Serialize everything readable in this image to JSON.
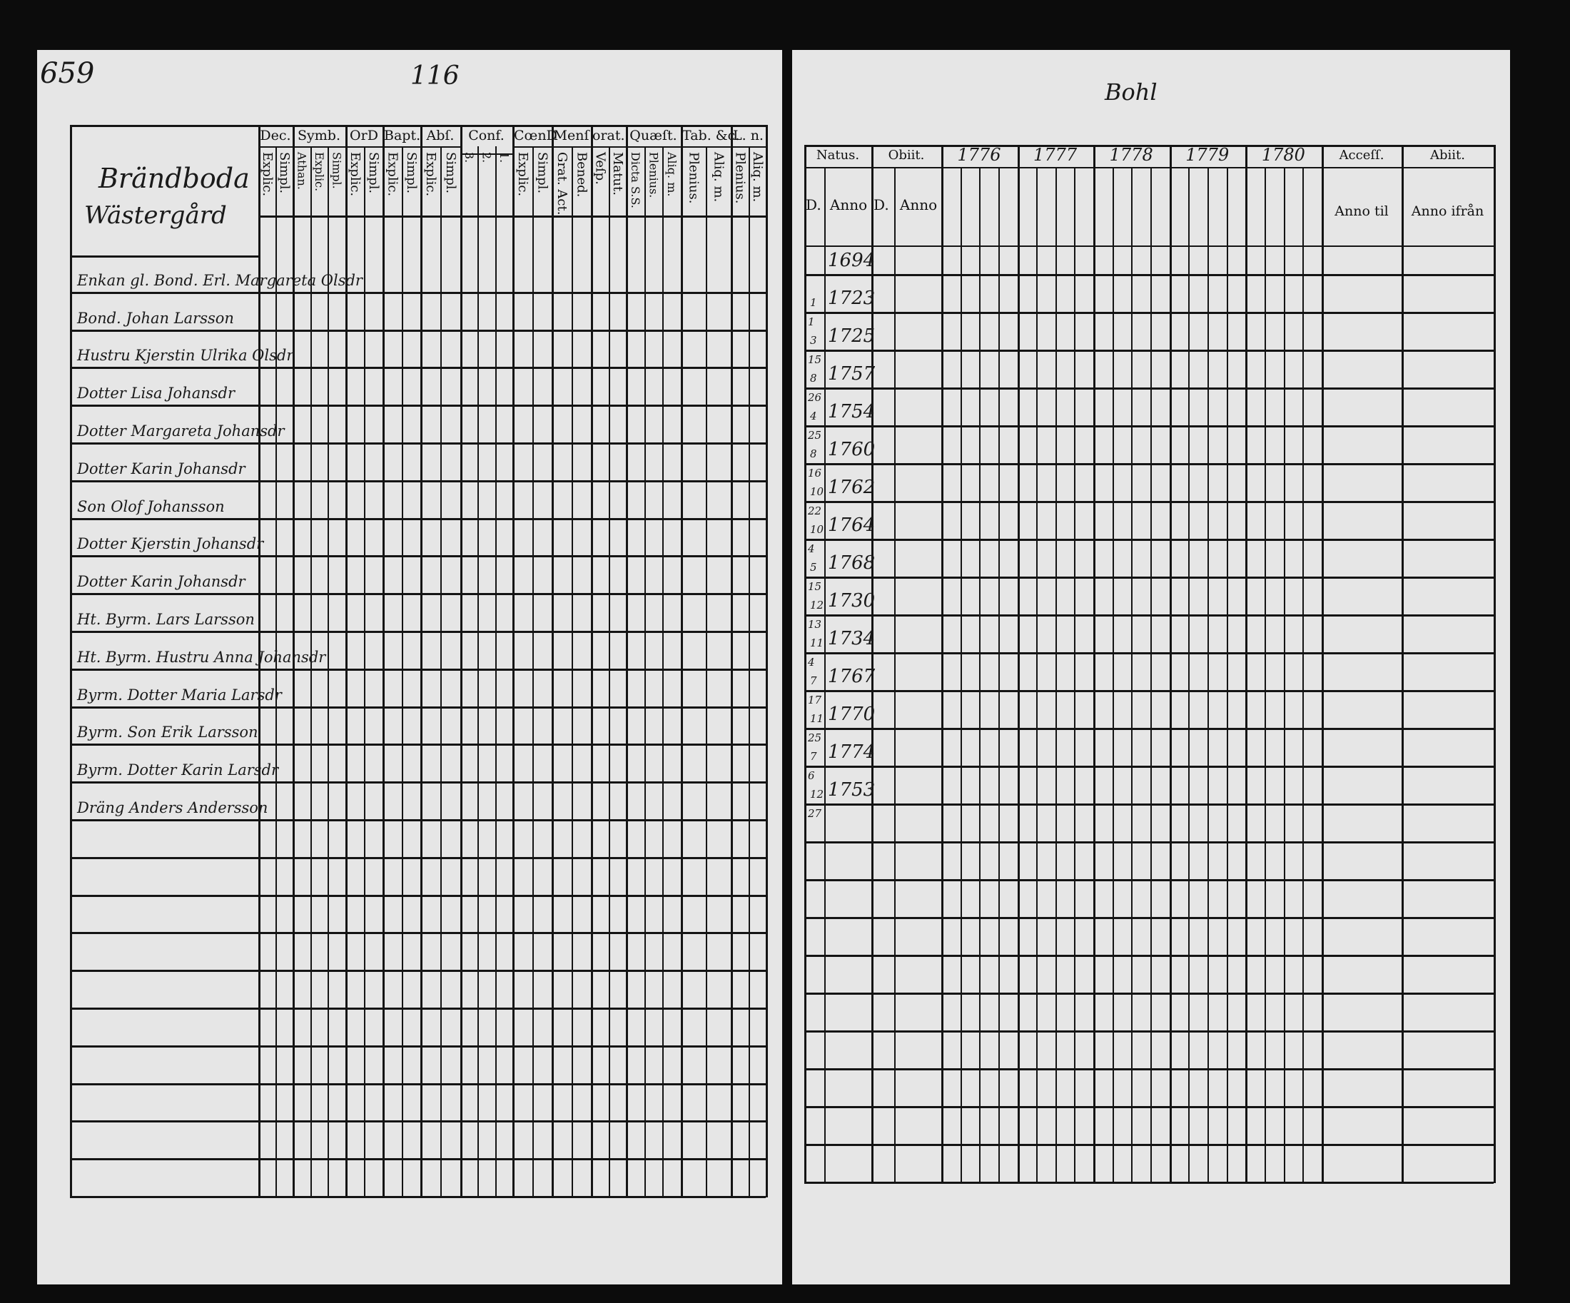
{
  "left_page": {
    "page_number": "659",
    "top_mark": "116",
    "farm_name": "Brändboda",
    "farm_subname": "Wästergård",
    "columns": [
      {
        "title": "Dec.",
        "subs": [
          "Explic.",
          "Simpl."
        ]
      },
      {
        "title": "Symb.",
        "subs": [
          "Athan.",
          "Explic.",
          "Simpl."
        ]
      },
      {
        "title": "OrD",
        "subs": [
          "Explic.",
          "Simpl."
        ]
      },
      {
        "title": "Bapt.",
        "subs": [
          "Explic.",
          "Simpl."
        ]
      },
      {
        "title": "Abſ.",
        "subs": [
          "Explic.",
          "Simpl."
        ]
      },
      {
        "title": "Conf.",
        "subs": [
          "3.",
          "2.",
          "1."
        ]
      },
      {
        "title": "CœnD",
        "subs": [
          "Explic.",
          "Simpl."
        ]
      },
      {
        "title": "Menſ",
        "subs": [
          "Grat. Act.",
          "Bened."
        ]
      },
      {
        "title": "orat.",
        "subs": [
          "Veſp.",
          "Matut."
        ]
      },
      {
        "title": "Quæſt.",
        "subs": [
          "Dicta S.S.",
          "Plenius.",
          "Aliq. m."
        ]
      },
      {
        "title": "Tab. &c.",
        "subs": [
          "Plenius.",
          "Aliq. m."
        ]
      },
      {
        "title": "L. n.",
        "subs": [
          "Plenius.",
          "Aliq. m."
        ]
      }
    ],
    "persons": [
      "Enkan gl. Bond. Erl. Margareta Olsdr",
      "Bond. Johan Larsson",
      "Hustru Kjerstin Ulrika Olsdr",
      "Dotter Lisa Johansdr",
      "Dotter Margareta Johansdr",
      "Dotter Karin Johansdr",
      "Son Olof Johansson",
      "Dotter Kjerstin Johansdr",
      "Dotter Karin Johansdr",
      "Ht. Byrm. Lars Larsson",
      "Ht. Byrm. Hustru Anna Johansdr",
      "Byrm. Dotter Maria Larsdr",
      "Byrm. Son Erik Larsson",
      "Byrm. Dotter Karin Larsdr",
      "Dräng Anders Andersson"
    ]
  },
  "right_page": {
    "top_mark": "Bohl",
    "headers": {
      "natus": "Natus.",
      "obiit": "Obiit.",
      "years": [
        "1776",
        "1777",
        "1778",
        "1779",
        "1780"
      ],
      "accessit": "Acceſſ.",
      "abiit": "Abiit.",
      "d": "D.",
      "anno": "Anno",
      "anno_til": "Anno til",
      "anno_ifran": "Anno ifrån"
    },
    "births": [
      {
        "day": "",
        "month": "",
        "year": "1694"
      },
      {
        "day": "",
        "month": "1",
        "year": "1723"
      },
      {
        "day": "1",
        "month": "3",
        "year": "1725"
      },
      {
        "day": "15",
        "month": "8",
        "year": "1757"
      },
      {
        "day": "26",
        "month": "4",
        "year": "1754"
      },
      {
        "day": "25",
        "month": "8",
        "year": "1760"
      },
      {
        "day": "16",
        "month": "10",
        "year": "1762"
      },
      {
        "day": "22",
        "month": "10",
        "year": "1764"
      },
      {
        "day": "4",
        "month": "5",
        "year": "1768"
      },
      {
        "day": "15",
        "month": "12",
        "year": "1730"
      },
      {
        "day": "13",
        "month": "11",
        "year": "1734"
      },
      {
        "day": "4",
        "month": "7",
        "year": "1767"
      },
      {
        "day": "17",
        "month": "11",
        "year": "1770"
      },
      {
        "day": "25",
        "month": "7",
        "year": "1774"
      },
      {
        "day": "6",
        "month": "12",
        "year": "1753"
      },
      {
        "day": "27",
        "month": "",
        "year": ""
      }
    ]
  },
  "colors": {
    "paper": "#e6e6e6",
    "ink": "#141414",
    "background": "#0c0c0c"
  }
}
